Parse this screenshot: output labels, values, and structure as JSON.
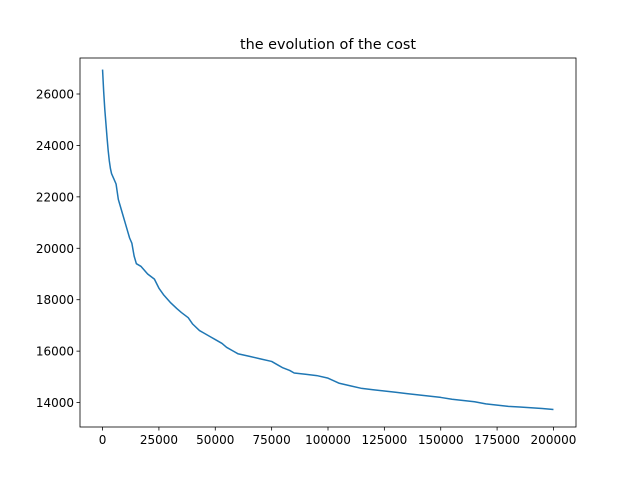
{
  "chart_data": {
    "type": "line",
    "title": "the evolution of the cost",
    "xlabel": "",
    "ylabel": "",
    "xlim": [
      -10000,
      210000
    ],
    "ylim": [
      13050,
      27400
    ],
    "grid": false,
    "x_ticks": [
      0,
      25000,
      50000,
      75000,
      100000,
      125000,
      150000,
      175000,
      200000
    ],
    "x_tick_labels": [
      "0",
      "25000",
      "50000",
      "75000",
      "100000",
      "125000",
      "150000",
      "175000",
      "200000"
    ],
    "y_ticks": [
      14000,
      16000,
      18000,
      20000,
      22000,
      24000,
      26000
    ],
    "y_tick_labels": [
      "14000",
      "16000",
      "18000",
      "20000",
      "22000",
      "24000",
      "26000"
    ],
    "series": [
      {
        "color": "#1f77b4",
        "x": [
          0,
          500,
          1000,
          1500,
          2000,
          2500,
          3000,
          3500,
          4000,
          5000,
          6000,
          7000,
          8000,
          9000,
          10000,
          11000,
          12000,
          13000,
          14000,
          15000,
          17000,
          20000,
          23000,
          25000,
          27000,
          30000,
          33000,
          35000,
          38000,
          40000,
          43000,
          45000,
          48000,
          50000,
          53000,
          55000,
          58000,
          60000,
          65000,
          70000,
          75000,
          78000,
          80000,
          83000,
          85000,
          90000,
          95000,
          100000,
          105000,
          110000,
          115000,
          120000,
          125000,
          130000,
          135000,
          140000,
          145000,
          150000,
          155000,
          160000,
          165000,
          170000,
          175000,
          180000,
          185000,
          190000,
          195000,
          200000
        ],
        "y": [
          26950,
          26100,
          25400,
          24850,
          24300,
          23800,
          23400,
          23100,
          22900,
          22700,
          22500,
          21900,
          21600,
          21300,
          21000,
          20700,
          20400,
          20200,
          19700,
          19400,
          19300,
          19000,
          18800,
          18450,
          18200,
          17900,
          17650,
          17500,
          17300,
          17050,
          16800,
          16700,
          16550,
          16450,
          16300,
          16150,
          16000,
          15900,
          15800,
          15700,
          15600,
          15450,
          15350,
          15250,
          15150,
          15100,
          15050,
          14950,
          14750,
          14650,
          14550,
          14500,
          14450,
          14400,
          14350,
          14300,
          14250,
          14200,
          14130,
          14080,
          14030,
          13950,
          13900,
          13850,
          13830,
          13800,
          13770,
          13730
        ]
      }
    ]
  }
}
